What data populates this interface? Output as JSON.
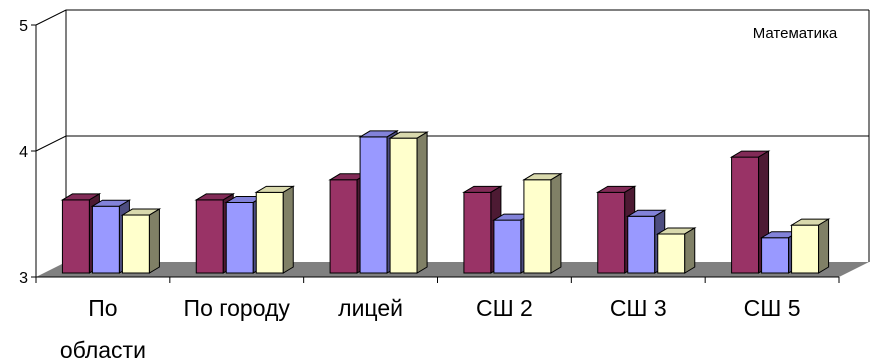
{
  "chart_data": {
    "type": "bar",
    "title": "",
    "xlabel": "",
    "ylabel": "",
    "ylim": [
      3,
      5
    ],
    "yticks": [
      3,
      4,
      5
    ],
    "grid": true,
    "legend_position": "top-right",
    "categories": [
      [
        "По",
        "области"
      ],
      [
        "По городу"
      ],
      [
        "лицей"
      ],
      [
        "СШ 2"
      ],
      [
        "СШ 3"
      ],
      [
        "СШ 5"
      ]
    ],
    "series": [
      {
        "values": [
          3.58,
          3.58,
          3.74,
          3.64,
          3.64,
          3.92
        ],
        "color": "#993366"
      },
      {
        "values": [
          3.53,
          3.56,
          4.08,
          3.42,
          3.45,
          3.28
        ],
        "color": "#9999ff"
      },
      {
        "values": [
          3.46,
          3.64,
          4.07,
          3.74,
          3.31,
          3.38
        ],
        "color": "#ffffcc"
      }
    ],
    "annotation": "Математика"
  }
}
